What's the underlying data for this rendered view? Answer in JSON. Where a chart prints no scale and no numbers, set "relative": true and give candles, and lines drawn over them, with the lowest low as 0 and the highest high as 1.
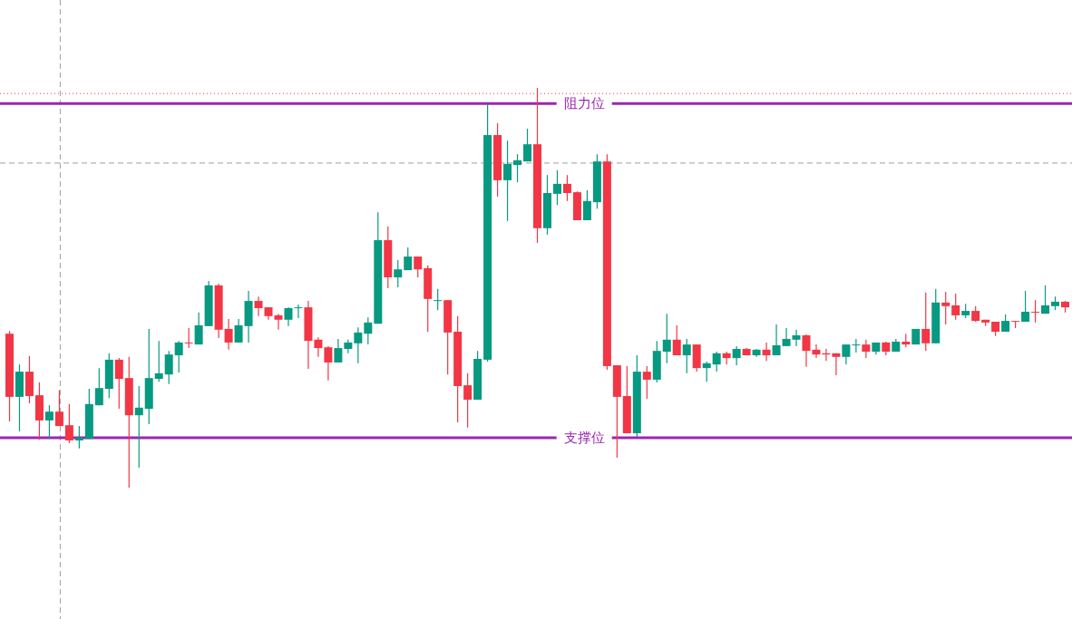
{
  "chart_data": {
    "type": "candlestick",
    "relative": true,
    "categories": [
      null,
      null,
      null,
      null,
      null,
      null,
      null,
      null,
      null,
      null,
      null,
      null,
      null,
      null,
      null,
      null,
      null,
      null,
      null,
      null,
      null,
      null,
      null,
      null,
      null,
      null,
      null,
      null,
      null,
      null,
      null,
      null,
      null,
      null,
      null,
      null,
      null,
      null,
      null,
      null,
      null,
      null,
      null,
      null,
      null,
      null,
      null,
      null,
      null,
      null,
      null,
      null,
      null,
      null,
      null,
      null,
      null,
      null,
      null,
      null,
      null,
      null,
      null,
      null,
      null,
      null,
      null,
      null,
      null,
      null,
      null,
      null,
      null,
      null,
      null,
      null,
      null,
      null,
      null,
      null,
      null,
      null,
      null,
      null,
      null,
      null,
      null,
      null,
      null,
      null,
      null,
      null,
      null,
      null,
      null,
      null,
      null,
      null,
      null,
      null,
      null,
      null,
      null,
      null,
      null,
      null,
      null
    ],
    "ohlc": [
      [
        0.385,
        0.392,
        0.166,
        0.227
      ],
      [
        0.227,
        0.308,
        0.141,
        0.29
      ],
      [
        0.29,
        0.329,
        0.211,
        0.229
      ],
      [
        0.231,
        0.263,
        0.12,
        0.168
      ],
      [
        0.168,
        0.206,
        0.122,
        0.19
      ],
      [
        0.19,
        0.243,
        0.154,
        0.154
      ],
      [
        0.156,
        0.209,
        0.111,
        0.118
      ],
      [
        0.118,
        0.154,
        0.098,
        0.125
      ],
      [
        0.122,
        0.247,
        0.122,
        0.209
      ],
      [
        0.206,
        0.299,
        0.206,
        0.249
      ],
      [
        0.247,
        0.336,
        0.224,
        0.32
      ],
      [
        0.32,
        0.324,
        0.197,
        0.272
      ],
      [
        0.274,
        0.327,
        0,
        0.181
      ],
      [
        0.181,
        0.254,
        0.05,
        0.2
      ],
      [
        0.197,
        0.397,
        0.159,
        0.274
      ],
      [
        0.272,
        0.367,
        0.265,
        0.286
      ],
      [
        0.283,
        0.342,
        0.259,
        0.333
      ],
      [
        0.331,
        0.367,
        0.288,
        0.363
      ],
      [
        0.363,
        0.399,
        0.349,
        0.361
      ],
      [
        0.358,
        0.438,
        0.358,
        0.406
      ],
      [
        0.404,
        0.517,
        0.404,
        0.506
      ],
      [
        0.506,
        0.51,
        0.374,
        0.395
      ],
      [
        0.397,
        0.422,
        0.345,
        0.363
      ],
      [
        0.363,
        0.422,
        0.363,
        0.406
      ],
      [
        0.404,
        0.492,
        0.363,
        0.467
      ],
      [
        0.467,
        0.478,
        0.429,
        0.449
      ],
      [
        0.451,
        0.451,
        0.42,
        0.429
      ],
      [
        0.431,
        0.435,
        0.395,
        0.42
      ],
      [
        0.42,
        0.451,
        0.404,
        0.449
      ],
      [
        0.449,
        0.458,
        0.424,
        0.451
      ],
      [
        0.451,
        0.467,
        0.297,
        0.367
      ],
      [
        0.37,
        0.376,
        0.327,
        0.349
      ],
      [
        0.351,
        0.354,
        0.268,
        0.313
      ],
      [
        0.313,
        0.372,
        0.313,
        0.349
      ],
      [
        0.347,
        0.37,
        0.336,
        0.363
      ],
      [
        0.361,
        0.401,
        0.311,
        0.388
      ],
      [
        0.385,
        0.426,
        0.358,
        0.413
      ],
      [
        0.41,
        0.689,
        0.41,
        0.619
      ],
      [
        0.619,
        0.653,
        0.499,
        0.526
      ],
      [
        0.526,
        0.569,
        0.501,
        0.546
      ],
      [
        0.544,
        0.601,
        0.544,
        0.578
      ],
      [
        0.578,
        0.578,
        0.526,
        0.546
      ],
      [
        0.549,
        0.556,
        0.39,
        0.472
      ],
      [
        0.467,
        0.497,
        0.444,
        0.469
      ],
      [
        0.469,
        0.469,
        0.283,
        0.388
      ],
      [
        0.39,
        0.429,
        0.163,
        0.254
      ],
      [
        0.256,
        0.286,
        0.15,
        0.22
      ],
      [
        0.22,
        0.342,
        0.22,
        0.322
      ],
      [
        0.32,
        0.961,
        0.315,
        0.882
      ],
      [
        0.882,
        0.912,
        0.728,
        0.769
      ],
      [
        0.769,
        0.868,
        0.667,
        0.81
      ],
      [
        0.807,
        0.834,
        0.764,
        0.819
      ],
      [
        0.816,
        0.898,
        0.816,
        0.859
      ],
      [
        0.859,
        1,
        0.612,
        0.649
      ],
      [
        0.649,
        0.782,
        0.633,
        0.737
      ],
      [
        0.735,
        0.794,
        0.707,
        0.76
      ],
      [
        0.76,
        0.782,
        0.717,
        0.737
      ],
      [
        0.739,
        0.741,
        0.669,
        0.669
      ],
      [
        0.669,
        0.744,
        0.669,
        0.717
      ],
      [
        0.714,
        0.834,
        0.698,
        0.816
      ],
      [
        0.816,
        0.834,
        0.295,
        0.304
      ],
      [
        0.306,
        0.306,
        0.075,
        0.227
      ],
      [
        0.229,
        0.304,
        0.136,
        0.136
      ],
      [
        0.136,
        0.331,
        0.127,
        0.29
      ],
      [
        0.29,
        0.304,
        0.222,
        0.27
      ],
      [
        0.27,
        0.367,
        0.263,
        0.342
      ],
      [
        0.34,
        0.435,
        0.311,
        0.37
      ],
      [
        0.37,
        0.406,
        0.331,
        0.331
      ],
      [
        0.331,
        0.372,
        0.286,
        0.358
      ],
      [
        0.358,
        0.358,
        0.29,
        0.299
      ],
      [
        0.299,
        0.315,
        0.265,
        0.311
      ],
      [
        0.308,
        0.34,
        0.29,
        0.336
      ],
      [
        0.336,
        0.34,
        0.308,
        0.324
      ],
      [
        0.324,
        0.354,
        0.306,
        0.347
      ],
      [
        0.347,
        0.349,
        0.331,
        0.331
      ],
      [
        0.331,
        0.347,
        0.327,
        0.345
      ],
      [
        0.345,
        0.363,
        0.317,
        0.331
      ],
      [
        0.331,
        0.408,
        0.331,
        0.356
      ],
      [
        0.354,
        0.399,
        0.354,
        0.372
      ],
      [
        0.37,
        0.395,
        0.354,
        0.381
      ],
      [
        0.381,
        0.383,
        0.302,
        0.342
      ],
      [
        0.345,
        0.358,
        0.324,
        0.333
      ],
      [
        0.336,
        0.347,
        0.317,
        0.333
      ],
      [
        0.336,
        0.336,
        0.281,
        0.327
      ],
      [
        0.327,
        0.358,
        0.308,
        0.358
      ],
      [
        0.356,
        0.372,
        0.338,
        0.358
      ],
      [
        0.358,
        0.37,
        0.324,
        0.34
      ],
      [
        0.34,
        0.363,
        0.333,
        0.363
      ],
      [
        0.363,
        0.365,
        0.331,
        0.34
      ],
      [
        0.34,
        0.372,
        0.34,
        0.365
      ],
      [
        0.365,
        0.385,
        0.351,
        0.358
      ],
      [
        0.358,
        0.397,
        0.358,
        0.397
      ],
      [
        0.397,
        0.488,
        0.342,
        0.361
      ],
      [
        0.361,
        0.497,
        0.361,
        0.463
      ],
      [
        0.463,
        0.49,
        0.408,
        0.454
      ],
      [
        0.456,
        0.485,
        0.42,
        0.431
      ],
      [
        0.431,
        0.46,
        0.424,
        0.442
      ],
      [
        0.442,
        0.454,
        0.415,
        0.417
      ],
      [
        0.42,
        0.42,
        0.404,
        0.413
      ],
      [
        0.415,
        0.415,
        0.379,
        0.39
      ],
      [
        0.39,
        0.433,
        0.39,
        0.417
      ],
      [
        0.417,
        0.417,
        0.399,
        0.415
      ],
      [
        0.415,
        0.492,
        0.415,
        0.44
      ],
      [
        0.44,
        0.469,
        0.413,
        0.438
      ],
      [
        0.435,
        0.506,
        0.435,
        0.456
      ],
      [
        0.454,
        0.478,
        0.444,
        0.465
      ],
      [
        0.465,
        0.467,
        0.438,
        0.451
      ]
    ],
    "colors": [
      "#f23645",
      "#089981",
      "#f23645",
      "#f23645",
      "#089981",
      "#f23645",
      "#f23645",
      "#089981",
      "#089981",
      "#089981",
      "#089981",
      "#f23645",
      "#f23645",
      "#089981",
      "#089981",
      "#089981",
      "#089981",
      "#089981",
      "#f23645",
      "#089981",
      "#089981",
      "#f23645",
      "#f23645",
      "#089981",
      "#089981",
      "#f23645",
      "#f23645",
      "#f23645",
      "#089981",
      "#089981",
      "#f23645",
      "#f23645",
      "#f23645",
      "#089981",
      "#089981",
      "#089981",
      "#089981",
      "#089981",
      "#f23645",
      "#089981",
      "#089981",
      "#f23645",
      "#f23645",
      "#089981",
      "#f23645",
      "#f23645",
      "#f23645",
      "#089981",
      "#089981",
      "#f23645",
      "#089981",
      "#089981",
      "#089981",
      "#f23645",
      "#089981",
      "#089981",
      "#f23645",
      "#f23645",
      "#089981",
      "#089981",
      "#f23645",
      "#f23645",
      "#f23645",
      "#089981",
      "#f23645",
      "#089981",
      "#089981",
      "#f23645",
      "#089981",
      "#f23645",
      "#089981",
      "#089981",
      "#f23645",
      "#089981",
      "#f23645",
      "#089981",
      "#f23645",
      "#089981",
      "#089981",
      "#089981",
      "#f23645",
      "#f23645",
      "#f23645",
      "#f23645",
      "#089981",
      "#089981",
      "#f23645",
      "#089981",
      "#f23645",
      "#089981",
      "#f23645",
      "#089981",
      "#f23645",
      "#089981",
      "#f23645",
      "#f23645",
      "#089981",
      "#f23645",
      "#f23645",
      "#f23645",
      "#089981",
      "#f23645",
      "#089981",
      "#f23645",
      "#089981",
      "#089981",
      "#f23645"
    ],
    "ref_lines": [
      {
        "axis": "y",
        "value": 0.986,
        "color": "#f23645",
        "line_style": "dotted"
      },
      {
        "axis": "y",
        "value": 0.961,
        "label": "阻力位",
        "color": "#9c27b0",
        "line_style": "solid"
      },
      {
        "axis": "y",
        "value": 0.812,
        "color": "#9e9e9e",
        "line_style": "dashed"
      },
      {
        "axis": "y",
        "value": 0.125,
        "label": "支撑位",
        "color": "#9c27b0",
        "line_style": "solid"
      }
    ]
  }
}
